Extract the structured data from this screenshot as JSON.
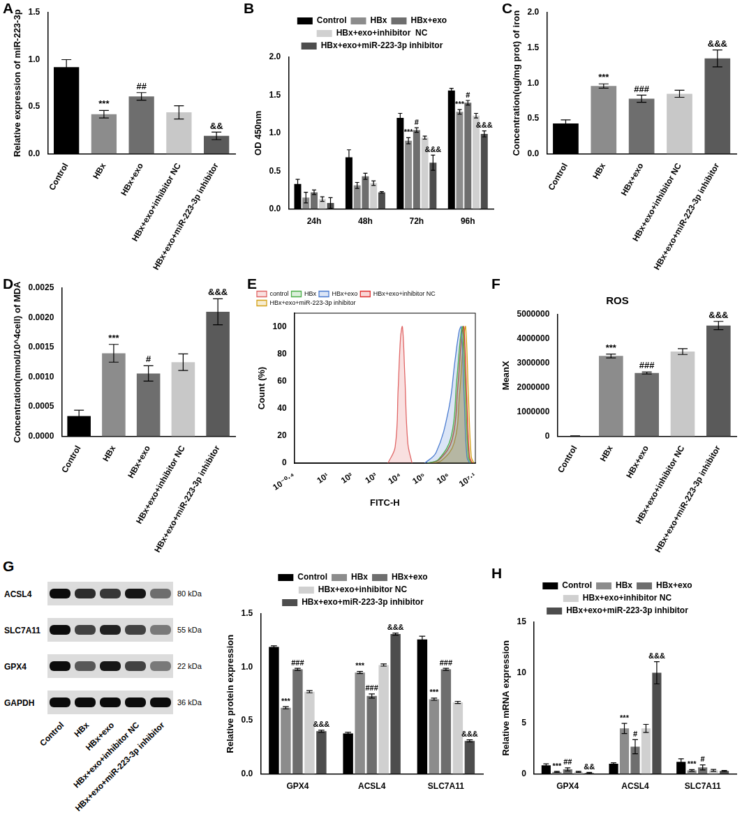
{
  "chart_data": [
    {
      "panel": "A",
      "type": "bar",
      "y_label": "Relative expression of miR-223-3p",
      "categories": [
        "Control",
        "HBx",
        "HBx+exo",
        "HBx+exo+inhibitor NC",
        "HBx+exo+miR-223-3p inhibitor"
      ],
      "values": [
        0.92,
        0.42,
        0.61,
        0.44,
        0.19
      ],
      "errors": [
        0.08,
        0.04,
        0.04,
        0.07,
        0.04
      ],
      "annotations": [
        null,
        "***",
        "##",
        null,
        "&&"
      ],
      "colors": [
        "#000000",
        "#8c8c8c",
        "#6e6e6e",
        "#c8c8c8",
        "#5a5a5a"
      ],
      "ylim": [
        0,
        1.5
      ],
      "yticks": [
        {
          "value": 0,
          "label": "0.0"
        },
        0.5,
        {
          "value": 1,
          "label": "1.0"
        },
        1.5
      ],
      "grid": false
    },
    {
      "panel": "B",
      "type": "bar",
      "y_label": "OD 450nm",
      "legend": "top",
      "categories": [
        "24h",
        "48h",
        "72h",
        "96h"
      ],
      "series": [
        {
          "name": "Control",
          "color": "#000000",
          "values": [
            0.33,
            0.68,
            1.2,
            1.56
          ],
          "errors": [
            0.06,
            0.1,
            0.06,
            0.03
          ],
          "annotations": [
            null,
            null,
            null,
            null
          ]
        },
        {
          "name": "HBx",
          "color": "#8c8c8c",
          "values": [
            0.15,
            0.31,
            0.9,
            1.28
          ],
          "errors": [
            0.07,
            0.04,
            0.04,
            0.03
          ],
          "annotations": [
            null,
            null,
            "***",
            "***"
          ]
        },
        {
          "name": "HBx+exo",
          "color": "#6e6e6e",
          "values": [
            0.22,
            0.43,
            1.04,
            1.4
          ],
          "errors": [
            0.03,
            0.04,
            0.03,
            0.03
          ],
          "annotations": [
            null,
            null,
            "#",
            "#"
          ]
        },
        {
          "name": "HBx+exo+inhibitor  NC",
          "color": "#d0d0d0",
          "values": [
            0.13,
            0.34,
            0.94,
            1.23
          ],
          "errors": [
            0.03,
            0.03,
            0.02,
            0.03
          ],
          "annotations": [
            null,
            null,
            null,
            null
          ]
        },
        {
          "name": "HBx+exo+miR-223-3p inhibitor",
          "color": "#4d4d4d",
          "values": [
            0.08,
            0.22,
            0.61,
            0.99
          ],
          "errors": [
            0.07,
            0.01,
            0.1,
            0.04
          ],
          "annotations": [
            null,
            null,
            "&&&",
            "&&&"
          ]
        }
      ],
      "ylim": [
        0,
        2
      ],
      "yticks": [
        {
          "value": 0,
          "label": "0.0"
        },
        0.5,
        {
          "value": 1,
          "label": "1.0"
        },
        1.5,
        {
          "value": 2,
          "label": "2.0"
        }
      ],
      "grid": false
    },
    {
      "panel": "C",
      "type": "bar",
      "y_label": "Concentration(ug/mg prot) of iron",
      "categories": [
        "Control",
        "HBx",
        "HBx+exo",
        "HBx+exo+inhibitor NC",
        "HBx+exo+miR-223-3p inhibitor"
      ],
      "values": [
        0.43,
        0.96,
        0.78,
        0.85,
        1.35
      ],
      "errors": [
        0.05,
        0.03,
        0.05,
        0.05,
        0.12
      ],
      "annotations": [
        null,
        "***",
        "###",
        null,
        "&&&"
      ],
      "colors": [
        "#000000",
        "#8c8c8c",
        "#6e6e6e",
        "#c8c8c8",
        "#5a5a5a"
      ],
      "ylim": [
        0,
        2
      ],
      "yticks": [
        {
          "value": 0,
          "label": "0.0"
        },
        0.5,
        {
          "value": 1,
          "label": "1.0"
        },
        1.5,
        {
          "value": 2,
          "label": "2.0"
        }
      ],
      "grid": false
    },
    {
      "panel": "D",
      "type": "bar",
      "y_label": "Concentration(nmol/10^4cell) of MDA",
      "categories": [
        "Control",
        "HBx",
        "HBx+exo",
        "HBx+exo+inhibitor NC",
        "HBx+exo+miR-223-3p inhibitor"
      ],
      "values": [
        0.00034,
        0.0014,
        0.00106,
        0.00125,
        0.0021
      ],
      "errors": [
        0.0001,
        0.00015,
        0.00013,
        0.00014,
        0.00022
      ],
      "annotations": [
        null,
        "***",
        "#",
        null,
        "&&&"
      ],
      "colors": [
        "#000000",
        "#8c8c8c",
        "#6e6e6e",
        "#c8c8c8",
        "#5a5a5a"
      ],
      "ylim": [
        0,
        0.0025
      ],
      "yticks": [
        {
          "value": 0,
          "label": "0.0000"
        },
        0.0005,
        {
          "value": 0.001,
          "label": "0.0010"
        },
        0.0015,
        {
          "value": 0.002,
          "label": "0.0020"
        },
        0.0025
      ],
      "grid": false
    },
    {
      "panel": "E",
      "type": "line",
      "log": "x",
      "x_label": "FITC-H",
      "y_label": "Count (%)",
      "legend": "upper left",
      "series": [
        {
          "name": "control",
          "color": "#e06666",
          "x": [
            3000,
            6000,
            8000,
            10000,
            12000,
            15000,
            20000,
            30000
          ],
          "values": [
            0,
            12,
            55,
            92,
            100,
            65,
            15,
            0
          ]
        },
        {
          "name": "HBx",
          "color": "#4daf4a",
          "x": [
            126000,
            380000,
            1270000,
            2110000,
            3170000,
            3800000,
            4940000,
            6460000,
            8360000
          ],
          "values": [
            0,
            3,
            20,
            60,
            95,
            100,
            50,
            5,
            0
          ]
        },
        {
          "name": "HBx+exo",
          "color": "#4a7bd0",
          "x": [
            100000,
            300000,
            1000000,
            1800000,
            2700000,
            3300000,
            4300000,
            5600000,
            7300000
          ],
          "values": [
            0,
            8,
            40,
            75,
            97,
            100,
            50,
            5,
            0
          ]
        },
        {
          "name": "HBx+exo+inhibitor NC",
          "color": "#e03030",
          "x": [
            140000,
            420000,
            1400000,
            2330000,
            3500000,
            4200000,
            5460000,
            7140000,
            9240000
          ],
          "values": [
            0,
            3,
            18,
            55,
            95,
            100,
            50,
            5,
            0
          ]
        },
        {
          "name": "HBx+exo+miR-223-3p inhibitor",
          "color": "#d4a017",
          "x": [
            170000,
            500000,
            1670000,
            2780000,
            4170000,
            5000000,
            6500000,
            8500000,
            11000000
          ],
          "values": [
            0,
            2,
            15,
            50,
            93,
            100,
            50,
            5,
            0
          ]
        }
      ],
      "xlim": [
        0.398,
        12589254
      ],
      "xticks": [
        {
          "value": 0.398,
          "label": "10⁻⁰·⁴"
        },
        {
          "value": 10,
          "label": "10¹"
        },
        {
          "value": 100,
          "label": "10²"
        },
        {
          "value": 1000,
          "label": "10³"
        },
        {
          "value": 10000,
          "label": "10⁴"
        },
        {
          "value": 100000,
          "label": "10⁵"
        },
        {
          "value": 1000000,
          "label": "10⁶"
        },
        {
          "value": 12589254,
          "label": "10⁷·¹"
        }
      ],
      "ylim": [
        0,
        110
      ],
      "yticks": [
        0,
        20,
        40,
        60,
        80,
        100
      ],
      "grid": false
    },
    {
      "panel": "F",
      "type": "bar",
      "title": "ROS",
      "y_label": "MeanX",
      "categories": [
        "Control",
        "HBx",
        "HBx+exo",
        "HBx+exo+inhibitor NC",
        "HBx+exo+miR-223-3p inhibitor"
      ],
      "values": [
        15000,
        3300000,
        2600000,
        3480000,
        4550000
      ],
      "errors": [
        2000,
        80000,
        40000,
        120000,
        170000
      ],
      "annotations": [
        null,
        "***",
        "###",
        null,
        "&&&"
      ],
      "colors": [
        "#000000",
        "#8c8c8c",
        "#6e6e6e",
        "#c8c8c8",
        "#5a5a5a"
      ],
      "ylim": [
        0,
        5000000
      ],
      "yticks": [
        0,
        1000000,
        2000000,
        3000000,
        4000000,
        5000000
      ],
      "grid": false
    },
    {
      "type": "bar",
      "y_label": "Relative protein expression",
      "legend": "top",
      "categories": [
        "GPX4",
        "ACSL4",
        "SLC7A11"
      ],
      "series": [
        {
          "name": "Control",
          "color": "#000000",
          "values": [
            1.19,
            0.38,
            1.26
          ],
          "errors": [
            0.01,
            0.01,
            0.03
          ],
          "annotations": [
            null,
            null,
            null
          ]
        },
        {
          "name": "HBx",
          "color": "#8c8c8c",
          "values": [
            0.62,
            0.95,
            0.7
          ],
          "errors": [
            0.01,
            0.01,
            0.01
          ],
          "annotations": [
            "***",
            "***",
            "***"
          ]
        },
        {
          "name": "HBx+exo",
          "color": "#6e6e6e",
          "values": [
            0.98,
            0.73,
            0.98
          ],
          "errors": [
            0.01,
            0.02,
            0.01
          ],
          "annotations": [
            "###",
            "###",
            "###"
          ]
        },
        {
          "name": "HBx+exo+inhibitor NC",
          "color": "#d0d0d0",
          "values": [
            0.77,
            1.02,
            0.67
          ],
          "errors": [
            0.01,
            0.01,
            0.01
          ],
          "annotations": [
            null,
            null,
            null
          ]
        },
        {
          "name": "HBx+exo+miR-223-3p inhibitor",
          "color": "#4d4d4d",
          "values": [
            0.4,
            1.31,
            0.31
          ],
          "errors": [
            0.01,
            0.01,
            0.01
          ],
          "annotations": [
            "&&&",
            "&&&",
            "&&&"
          ]
        }
      ],
      "ylim": [
        0,
        1.5
      ],
      "yticks": [
        {
          "value": 0,
          "label": "0.0"
        },
        0.5,
        {
          "value": 1,
          "label": "1.0"
        },
        1.5
      ],
      "grid": false
    },
    {
      "panel": "H",
      "type": "bar",
      "y_label": "Relative mRNA expression",
      "legend": "top",
      "categories": [
        "GPX4",
        "ACSL4",
        "SLC7A11"
      ],
      "series": [
        {
          "name": "Control",
          "color": "#000000",
          "values": [
            0.85,
            1.0,
            1.2
          ],
          "errors": [
            0.15,
            0.1,
            0.3
          ],
          "annotations": [
            null,
            null,
            null
          ]
        },
        {
          "name": "HBx",
          "color": "#8c8c8c",
          "values": [
            0.2,
            4.5,
            0.35
          ],
          "errors": [
            0.05,
            0.5,
            0.08
          ],
          "annotations": [
            "***",
            "***",
            "***"
          ]
        },
        {
          "name": "HBx+exo",
          "color": "#6e6e6e",
          "values": [
            0.45,
            2.7,
            0.65
          ],
          "errors": [
            0.15,
            0.7,
            0.25
          ],
          "annotations": [
            "##",
            "#",
            "#"
          ]
        },
        {
          "name": "HBx+exo+inhibitor NC",
          "color": "#d0d0d0",
          "values": [
            0.2,
            4.5,
            0.35
          ],
          "errors": [
            0.05,
            0.4,
            0.1
          ],
          "annotations": [
            null,
            null,
            null
          ]
        },
        {
          "name": "HBx+exo+miR-223-3p inhibitor",
          "color": "#4d4d4d",
          "values": [
            0.1,
            10.0,
            0.3
          ],
          "errors": [
            0.05,
            1.1,
            0.05
          ],
          "annotations": [
            "&&",
            "&&&",
            null
          ]
        }
      ],
      "ylim": [
        0,
        15
      ],
      "yticks": [
        0,
        5,
        10,
        15
      ],
      "grid": false
    }
  ],
  "blot": {
    "panel": "G",
    "lanes": [
      "Control",
      "HBx",
      "HBx+exo",
      "HBx+exo+inhibitor NC",
      "HBx+exo+miR-223-3p inhibitor"
    ],
    "rows": [
      {
        "protein": "ACSL4",
        "size": "80 kDa",
        "intensity": [
          0.95,
          0.8,
          0.75,
          0.9,
          0.5
        ]
      },
      {
        "protein": "SLC7A11",
        "size": "55 kDa",
        "intensity": [
          0.95,
          0.7,
          0.85,
          0.7,
          0.45
        ]
      },
      {
        "protein": "GPX4",
        "size": "22 kDa",
        "intensity": [
          0.95,
          0.6,
          0.9,
          0.7,
          0.45
        ]
      },
      {
        "protein": "GAPDH",
        "size": "36 kDa",
        "intensity": [
          0.95,
          0.95,
          0.95,
          0.95,
          0.95
        ]
      }
    ]
  }
}
